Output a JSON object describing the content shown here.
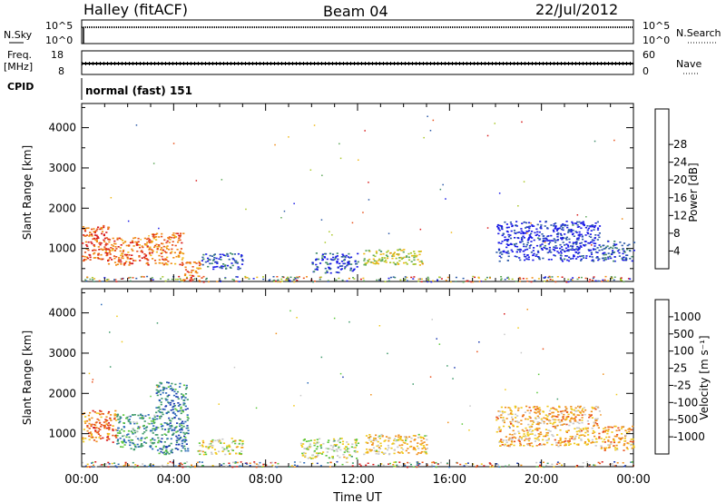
{
  "header": {
    "station": "Halley (fitACF)",
    "beam": "Beam 04",
    "date": "22/Jul/2012"
  },
  "top_panels": {
    "nsky_label": "N.Sky",
    "nsky_ticks": [
      "10^5",
      "10^0"
    ],
    "nsearch_label": "N.Search",
    "nsearch_ticks": [
      "10^5",
      "10^0"
    ],
    "freq_label": "Freq.",
    "freq_unit": "[MHz]",
    "freq_ticks": [
      "18",
      "8"
    ],
    "nave_label": "Nave",
    "nave_ticks": [
      "60",
      "0"
    ],
    "cpid_label": "CPID",
    "cpid_text": "normal (fast) 151"
  },
  "chart_data": [
    {
      "type": "heatmap",
      "name": "power",
      "ylabel": "Slant Range [km]",
      "ylim": [
        180,
        4600
      ],
      "yticks": [
        1000,
        2000,
        3000,
        4000
      ],
      "xlabel": "",
      "xlim": [
        0,
        24
      ],
      "colorbar_label": "Power [dB]",
      "colorbar_ticks": [
        "4",
        "8",
        "12",
        "16",
        "20",
        "24",
        "28"
      ],
      "colors": [
        "#1a1ae6",
        "#2c5aa8",
        "#3f8a6a",
        "#5fa85a",
        "#aac828",
        "#f0b81a",
        "#f08a14",
        "#e8501a",
        "#d81a1a"
      ],
      "regions": [
        {
          "t": [
            0.0,
            1.2
          ],
          "r": [
            700,
            1600
          ],
          "level": 0.85
        },
        {
          "t": [
            1.0,
            3.0
          ],
          "r": [
            600,
            1300
          ],
          "level": 0.8
        },
        {
          "t": [
            3.0,
            4.4
          ],
          "r": [
            600,
            1400
          ],
          "level": 0.75
        },
        {
          "t": [
            4.4,
            5.2
          ],
          "r": [
            200,
            700
          ],
          "level": 0.8
        },
        {
          "t": [
            5.2,
            7.0
          ],
          "r": [
            500,
            900
          ],
          "level": 0.15
        },
        {
          "t": [
            10.0,
            12.0
          ],
          "r": [
            400,
            900
          ],
          "level": 0.12
        },
        {
          "t": [
            12.2,
            14.8
          ],
          "r": [
            600,
            1000
          ],
          "level": 0.5
        },
        {
          "t": [
            18.0,
            22.5
          ],
          "r": [
            700,
            1700
          ],
          "level": 0.05
        },
        {
          "t": [
            22.5,
            24.0
          ],
          "r": [
            700,
            1200
          ],
          "level": 0.15
        }
      ]
    },
    {
      "type": "heatmap",
      "name": "velocity",
      "ylabel": "Slant Range [km]",
      "ylim": [
        180,
        4600
      ],
      "yticks": [
        1000,
        2000,
        3000,
        4000
      ],
      "xlabel": "Time UT",
      "xlim": [
        0,
        24
      ],
      "xticks": [
        "00:00",
        "04:00",
        "08:00",
        "12:00",
        "16:00",
        "20:00",
        "00:00"
      ],
      "colorbar_label": "Velocity [m s⁻¹]",
      "colorbar_ticks": [
        "1000",
        "500",
        "100",
        "25",
        "-25",
        "-100",
        "-500",
        "-1000"
      ],
      "colors": [
        "#1a3ab0",
        "#2a6ab8",
        "#3e9a6a",
        "#5cc83a",
        "#c8c8c8",
        "#f0c81a",
        "#f0901a",
        "#e8501a",
        "#d81a1a"
      ],
      "regions": [
        {
          "t": [
            0.0,
            1.5
          ],
          "r": [
            800,
            1600
          ],
          "level": 0.8
        },
        {
          "t": [
            1.5,
            3.2
          ],
          "r": [
            600,
            1500
          ],
          "level": 0.3
        },
        {
          "t": [
            3.2,
            4.6
          ],
          "r": [
            500,
            2300
          ],
          "level": 0.2
        },
        {
          "t": [
            5.0,
            7.0
          ],
          "r": [
            500,
            900
          ],
          "level": 0.55
        },
        {
          "t": [
            9.5,
            12.0
          ],
          "r": [
            400,
            900
          ],
          "level": 0.5
        },
        {
          "t": [
            12.2,
            15.0
          ],
          "r": [
            500,
            1000
          ],
          "level": 0.6
        },
        {
          "t": [
            18.0,
            22.5
          ],
          "r": [
            700,
            1700
          ],
          "level": 0.65
        },
        {
          "t": [
            22.5,
            24.0
          ],
          "r": [
            600,
            1200
          ],
          "level": 0.7
        }
      ]
    }
  ]
}
